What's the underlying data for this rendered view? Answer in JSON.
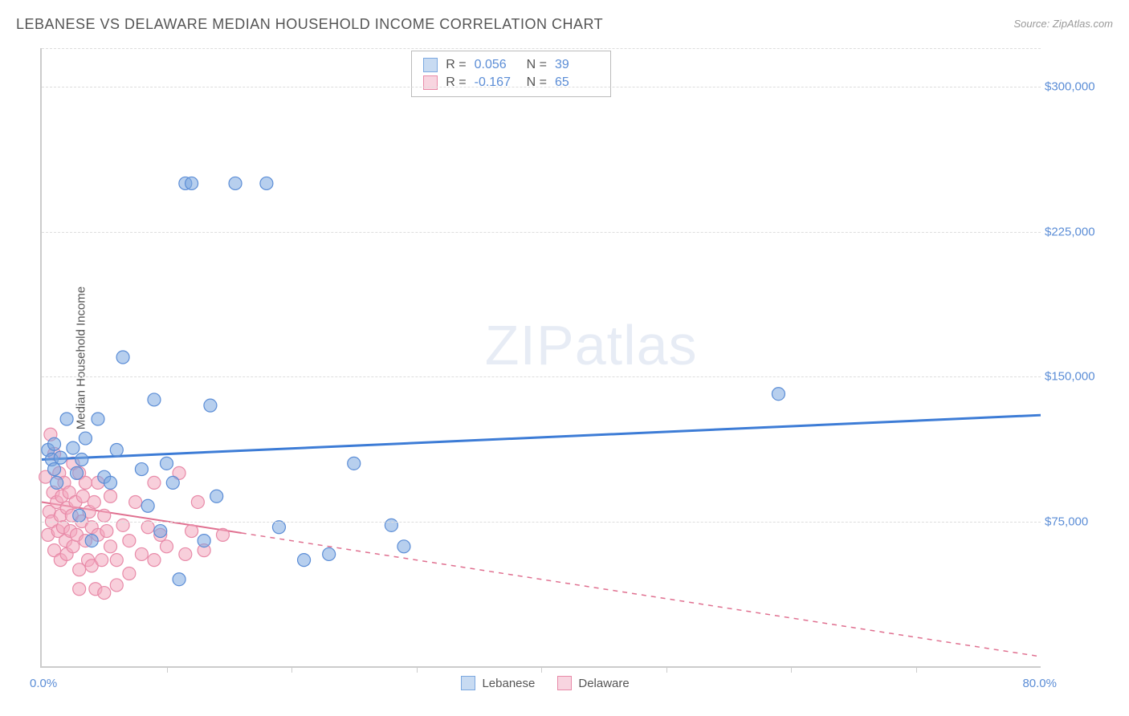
{
  "title": "LEBANESE VS DELAWARE MEDIAN HOUSEHOLD INCOME CORRELATION CHART",
  "source": "Source: ZipAtlas.com",
  "y_axis_label": "Median Household Income",
  "watermark_a": "ZIP",
  "watermark_b": "atlas",
  "chart": {
    "type": "scatter",
    "background_color": "#ffffff",
    "grid_color": "#dddddd",
    "axis_color": "#cccccc",
    "tick_label_color": "#5b8dd6",
    "x_min": 0.0,
    "x_max": 80.0,
    "y_min": 0,
    "y_max": 320000,
    "y_ticks": [
      75000,
      150000,
      225000,
      300000
    ],
    "y_tick_labels": [
      "$75,000",
      "$150,000",
      "$225,000",
      "$300,000"
    ],
    "x_min_label": "0.0%",
    "x_max_label": "80.0%",
    "x_tick_positions": [
      10,
      20,
      30,
      40,
      50,
      60,
      70
    ],
    "marker_radius": 8,
    "marker_opacity": 0.55,
    "series": [
      {
        "name": "Lebanese",
        "color": "#7ba8e0",
        "stroke": "#5b8dd6",
        "trend_color": "#3d7cd6",
        "trend_width": 3,
        "trend_dashed_after_x": 80,
        "trend_y_at_xmin": 107000,
        "trend_y_at_xmax": 130000,
        "points": [
          [
            0.5,
            112000
          ],
          [
            0.8,
            107000
          ],
          [
            1.0,
            102000
          ],
          [
            1.0,
            115000
          ],
          [
            1.2,
            95000
          ],
          [
            1.5,
            108000
          ],
          [
            2.0,
            128000
          ],
          [
            2.5,
            113000
          ],
          [
            2.8,
            100000
          ],
          [
            3.0,
            78000
          ],
          [
            3.2,
            107000
          ],
          [
            3.5,
            118000
          ],
          [
            4.0,
            65000
          ],
          [
            4.5,
            128000
          ],
          [
            5.0,
            98000
          ],
          [
            5.5,
            95000
          ],
          [
            6.0,
            112000
          ],
          [
            6.5,
            160000
          ],
          [
            8.0,
            102000
          ],
          [
            8.5,
            83000
          ],
          [
            9.0,
            138000
          ],
          [
            9.5,
            70000
          ],
          [
            10.0,
            105000
          ],
          [
            10.5,
            95000
          ],
          [
            11.0,
            45000
          ],
          [
            11.5,
            250000
          ],
          [
            12.0,
            250000
          ],
          [
            13.0,
            65000
          ],
          [
            13.5,
            135000
          ],
          [
            14.0,
            88000
          ],
          [
            15.5,
            250000
          ],
          [
            18.0,
            250000
          ],
          [
            19.0,
            72000
          ],
          [
            21.0,
            55000
          ],
          [
            23.0,
            58000
          ],
          [
            25.0,
            105000
          ],
          [
            28.0,
            73000
          ],
          [
            29.0,
            62000
          ],
          [
            59.0,
            141000
          ]
        ]
      },
      {
        "name": "Delaware",
        "color": "#f2a7bd",
        "stroke": "#e88aa8",
        "trend_color": "#e07090",
        "trend_width": 2,
        "trend_dashed_after_x": 16,
        "trend_y_at_xmin": 85000,
        "trend_y_at_xmax": 5000,
        "points": [
          [
            0.3,
            98000
          ],
          [
            0.5,
            68000
          ],
          [
            0.6,
            80000
          ],
          [
            0.7,
            120000
          ],
          [
            0.8,
            75000
          ],
          [
            0.9,
            90000
          ],
          [
            1.0,
            60000
          ],
          [
            1.0,
            110000
          ],
          [
            1.2,
            85000
          ],
          [
            1.3,
            70000
          ],
          [
            1.4,
            100000
          ],
          [
            1.5,
            78000
          ],
          [
            1.5,
            55000
          ],
          [
            1.6,
            88000
          ],
          [
            1.7,
            72000
          ],
          [
            1.8,
            95000
          ],
          [
            1.9,
            65000
          ],
          [
            2.0,
            82000
          ],
          [
            2.0,
            58000
          ],
          [
            2.2,
            90000
          ],
          [
            2.3,
            70000
          ],
          [
            2.4,
            78000
          ],
          [
            2.5,
            105000
          ],
          [
            2.5,
            62000
          ],
          [
            2.7,
            85000
          ],
          [
            2.8,
            68000
          ],
          [
            3.0,
            100000
          ],
          [
            3.0,
            50000
          ],
          [
            3.0,
            40000
          ],
          [
            3.2,
            75000
          ],
          [
            3.3,
            88000
          ],
          [
            3.5,
            65000
          ],
          [
            3.5,
            95000
          ],
          [
            3.7,
            55000
          ],
          [
            3.8,
            80000
          ],
          [
            4.0,
            72000
          ],
          [
            4.0,
            52000
          ],
          [
            4.2,
            85000
          ],
          [
            4.3,
            40000
          ],
          [
            4.5,
            68000
          ],
          [
            4.5,
            95000
          ],
          [
            4.8,
            55000
          ],
          [
            5.0,
            78000
          ],
          [
            5.0,
            38000
          ],
          [
            5.2,
            70000
          ],
          [
            5.5,
            62000
          ],
          [
            5.5,
            88000
          ],
          [
            6.0,
            55000
          ],
          [
            6.0,
            42000
          ],
          [
            6.5,
            73000
          ],
          [
            7.0,
            48000
          ],
          [
            7.0,
            65000
          ],
          [
            7.5,
            85000
          ],
          [
            8.0,
            58000
          ],
          [
            8.5,
            72000
          ],
          [
            9.0,
            95000
          ],
          [
            9.0,
            55000
          ],
          [
            9.5,
            68000
          ],
          [
            10.0,
            62000
          ],
          [
            11.0,
            100000
          ],
          [
            11.5,
            58000
          ],
          [
            12.0,
            70000
          ],
          [
            12.5,
            85000
          ],
          [
            13.0,
            60000
          ],
          [
            14.5,
            68000
          ]
        ]
      }
    ]
  },
  "stats_legend": [
    {
      "swatch_fill": "#c8dbf2",
      "swatch_border": "#7ba8e0",
      "r": "0.056",
      "n": "39"
    },
    {
      "swatch_fill": "#f8d5e0",
      "swatch_border": "#e88aa8",
      "r": "-0.167",
      "n": "65"
    }
  ],
  "stats_labels": {
    "r": "R =",
    "n": "N ="
  },
  "bottom_legend": [
    {
      "swatch_fill": "#c8dbf2",
      "swatch_border": "#7ba8e0",
      "label": "Lebanese"
    },
    {
      "swatch_fill": "#f8d5e0",
      "swatch_border": "#e88aa8",
      "label": "Delaware"
    }
  ]
}
